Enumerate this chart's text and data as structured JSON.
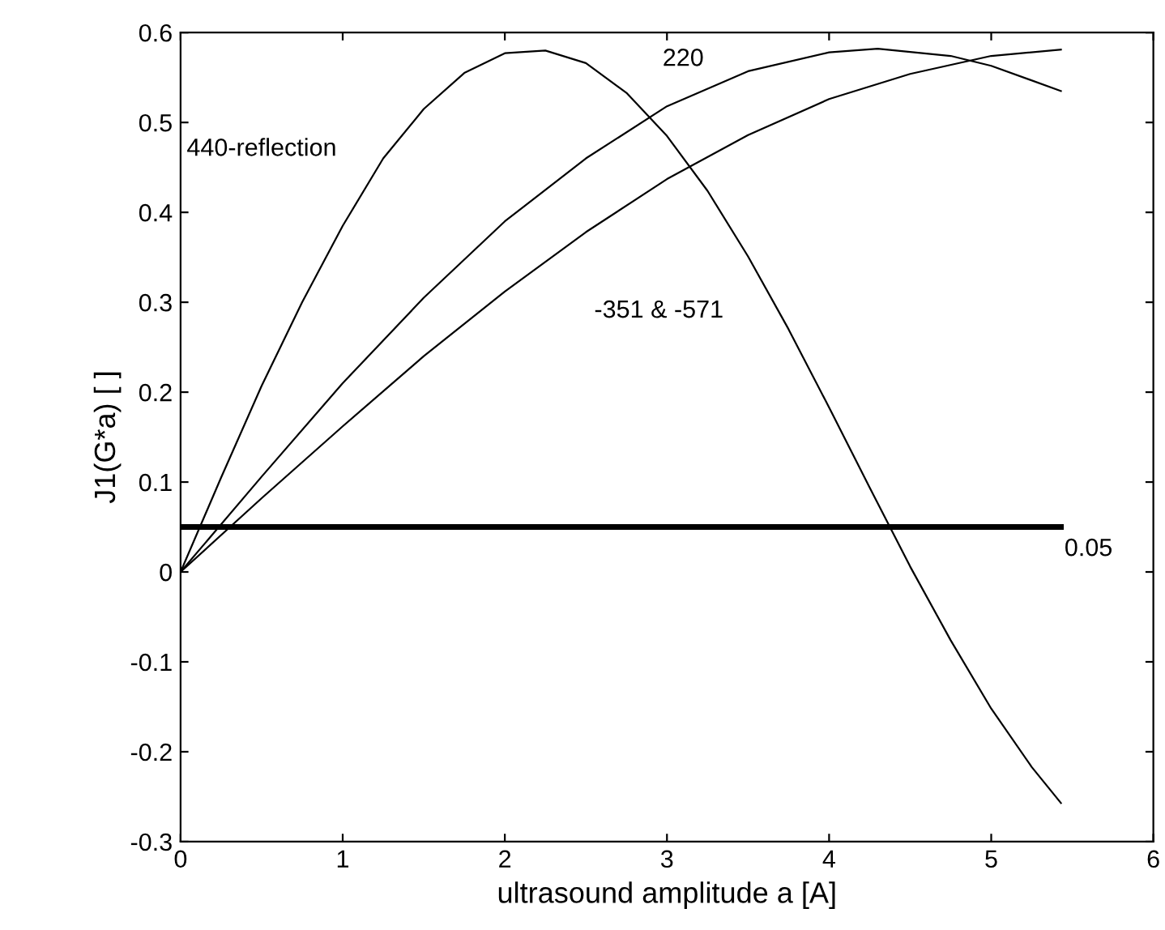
{
  "chart_data": {
    "type": "line",
    "xlabel": "ultrasound amplitude a [A]",
    "ylabel": "J1(G*a) [ ]",
    "xlim": [
      0,
      6
    ],
    "xticks": [
      0,
      1,
      2,
      3,
      4,
      5,
      6
    ],
    "ylim": [
      -0.3,
      0.6
    ],
    "yticks": [
      -0.3,
      -0.2,
      -0.1,
      0,
      0.1,
      0.2,
      0.3,
      0.4,
      0.5,
      0.6
    ],
    "grid": false,
    "legend": false,
    "marker": "none",
    "line_style": "solid",
    "series": [
      {
        "color": "#000000",
        "x": [
          0,
          0.25,
          0.5,
          0.75,
          1,
          1.25,
          1.5,
          1.75,
          2,
          2.25,
          2.5,
          2.75,
          3,
          3.25,
          3.5,
          3.75,
          4,
          4.25,
          4.5,
          4.75,
          5,
          5.25,
          5.43
        ],
        "values": [
          0,
          0.105,
          0.207,
          0.3,
          0.385,
          0.46,
          0.515,
          0.555,
          0.577,
          0.58,
          0.566,
          0.533,
          0.485,
          0.424,
          0.351,
          0.27,
          0.183,
          0.094,
          0.006,
          -0.076,
          -0.152,
          -0.217,
          -0.257
        ]
      },
      {
        "color": "#000000",
        "x": [
          0,
          0.5,
          1,
          1.5,
          2,
          2.5,
          3,
          3.5,
          4,
          4.3,
          4.75,
          5,
          5.43
        ],
        "values": [
          0,
          0.106,
          0.21,
          0.305,
          0.39,
          0.46,
          0.518,
          0.557,
          0.578,
          0.582,
          0.574,
          0.563,
          0.535
        ]
      },
      {
        "color": "#000000",
        "x": [
          0,
          0.5,
          1,
          1.5,
          2,
          2.5,
          3,
          3.5,
          4,
          4.5,
          5,
          5.43
        ],
        "values": [
          0,
          0.082,
          0.162,
          0.24,
          0.312,
          0.378,
          0.437,
          0.486,
          0.526,
          0.554,
          0.574,
          0.581
        ]
      },
      {
        "color": "#000000",
        "x": [
          0,
          5.43
        ],
        "values": [
          0.05,
          0.05
        ]
      }
    ],
    "annotations": [
      "440-reflection",
      "220",
      "-351 & -571",
      "0.05"
    ]
  }
}
